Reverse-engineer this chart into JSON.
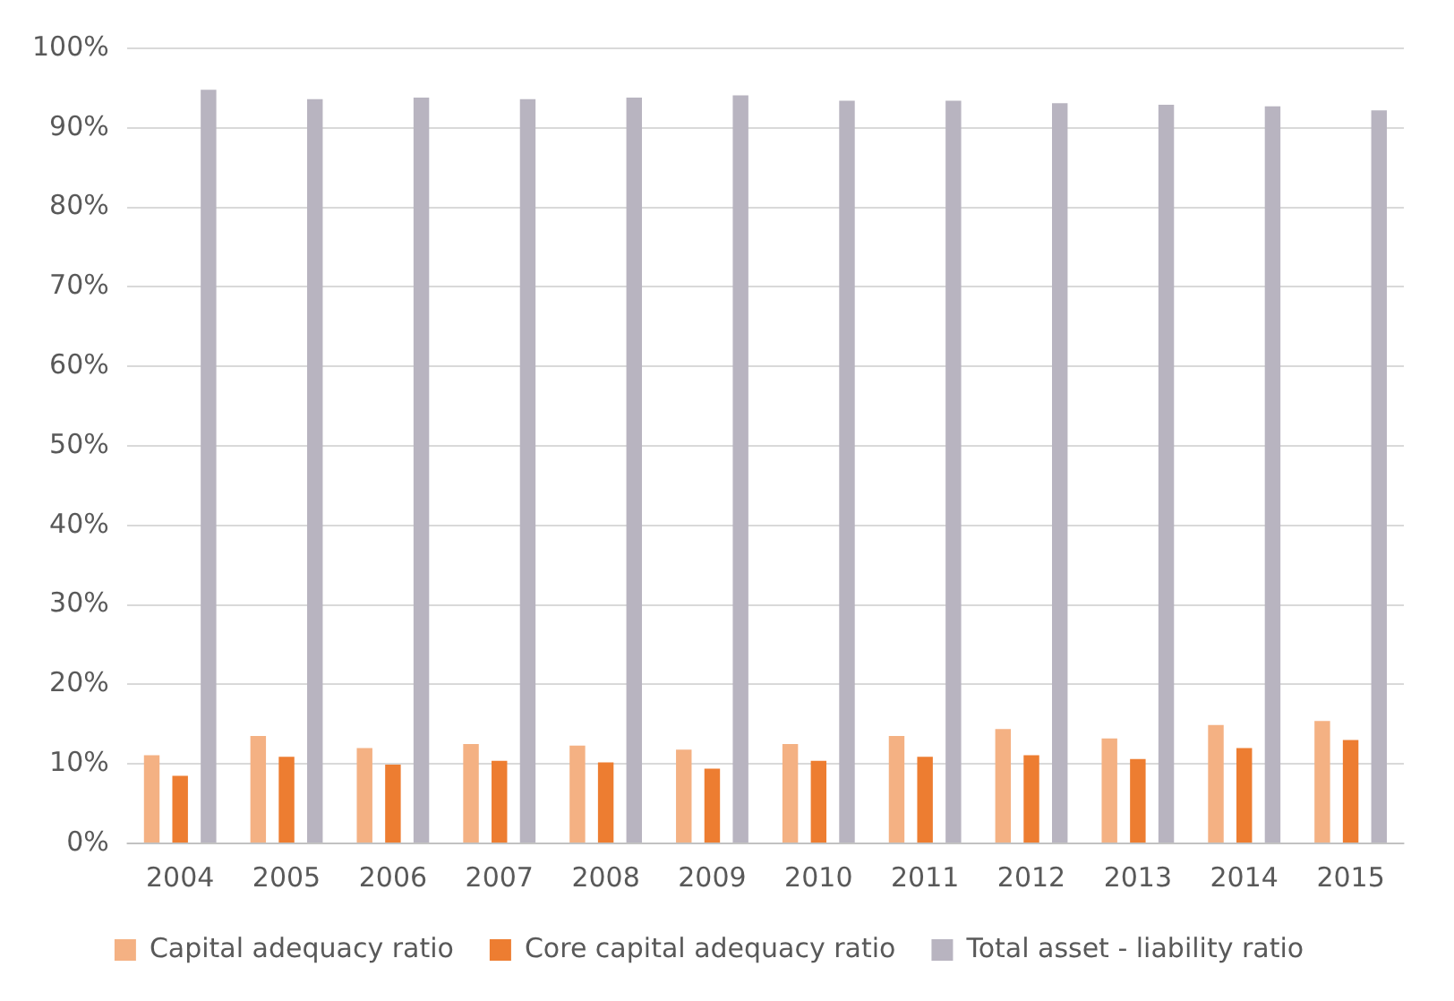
{
  "chart_data": {
    "type": "bar",
    "categories": [
      "2004",
      "2005",
      "2006",
      "2007",
      "2008",
      "2009",
      "2010",
      "2011",
      "2012",
      "2013",
      "2014",
      "2015"
    ],
    "series": [
      {
        "name": "Capital adequacy ratio",
        "color": "#f4b183",
        "values": [
          11.1,
          13.5,
          12.0,
          12.5,
          12.3,
          11.8,
          12.5,
          13.5,
          14.4,
          13.2,
          14.9,
          15.4
        ]
      },
      {
        "name": "Core capital adequacy ratio",
        "color": "#ed7d31",
        "values": [
          8.5,
          10.9,
          9.9,
          10.4,
          10.2,
          9.4,
          10.4,
          10.9,
          11.1,
          10.6,
          12.0,
          13.0
        ]
      },
      {
        "name": "Total asset - liability ratio",
        "color": "#b8b4c0",
        "values": [
          94.8,
          93.6,
          93.8,
          93.6,
          93.8,
          94.1,
          93.4,
          93.4,
          93.1,
          92.9,
          92.7,
          92.2
        ]
      }
    ],
    "ylim": [
      0,
      100
    ],
    "yticks": [
      {
        "value": 0,
        "label": "0%"
      },
      {
        "value": 10,
        "label": "10%"
      },
      {
        "value": 20,
        "label": "20%"
      },
      {
        "value": 30,
        "label": "30%"
      },
      {
        "value": 40,
        "label": "40%"
      },
      {
        "value": 50,
        "label": "50%"
      },
      {
        "value": 60,
        "label": "60%"
      },
      {
        "value": 70,
        "label": "70%"
      },
      {
        "value": 80,
        "label": "80%"
      },
      {
        "value": 90,
        "label": "90%"
      },
      {
        "value": 100,
        "label": "100%"
      }
    ],
    "grid": "y",
    "legend": "bottom"
  }
}
